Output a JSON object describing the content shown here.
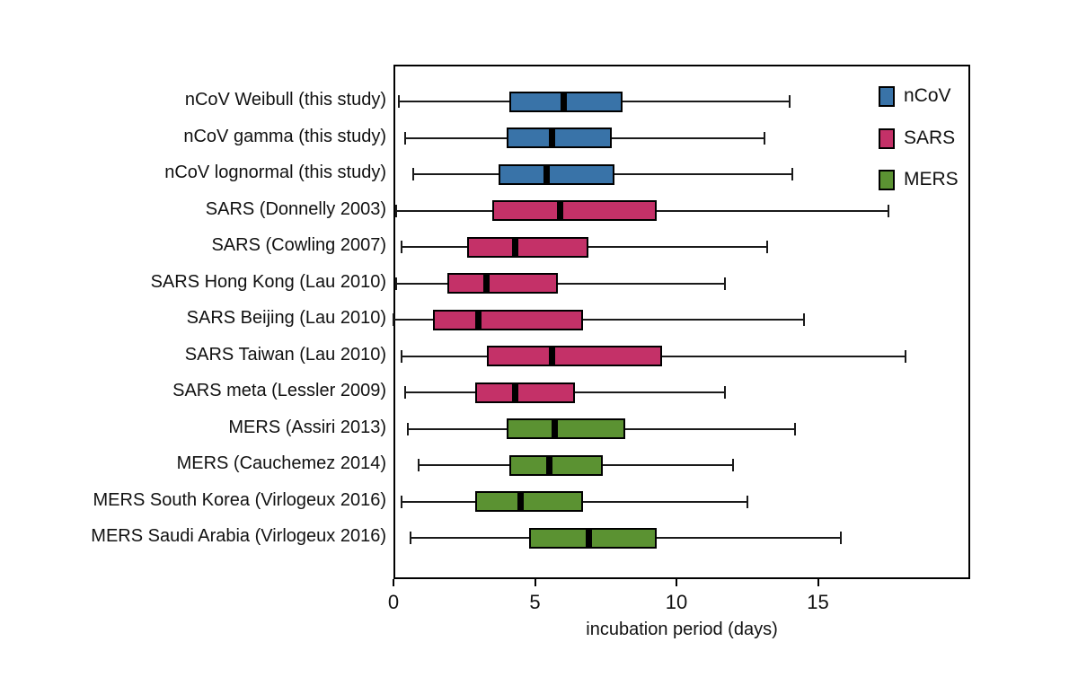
{
  "chart_data": {
    "type": "boxplot",
    "orientation": "horizontal",
    "title": "",
    "xlabel": "incubation period (days)",
    "x_tick_labels": [
      "0",
      "5",
      "10",
      "15"
    ],
    "x_tick_values": [
      0,
      5,
      10,
      15
    ],
    "xlim": [
      0,
      20.4
    ],
    "grid": false,
    "legend_position": "inside-top-right",
    "legend": [
      {
        "label": "nCoV",
        "color": "#3973A8"
      },
      {
        "label": "SARS",
        "color": "#C43168"
      },
      {
        "label": "MERS",
        "color": "#5B9232"
      }
    ],
    "series": [
      {
        "label": "nCoV Weibull (this study)",
        "group": "nCoV",
        "values": {
          "low": 0.2,
          "q1": 4.1,
          "median": 6.0,
          "q3": 8.1,
          "high": 14.0
        }
      },
      {
        "label": "nCoV gamma (this study)",
        "group": "nCoV",
        "values": {
          "low": 0.4,
          "q1": 4.0,
          "median": 5.6,
          "q3": 7.7,
          "high": 13.1
        }
      },
      {
        "label": "nCoV lognormal (this study)",
        "group": "nCoV",
        "values": {
          "low": 0.7,
          "q1": 3.7,
          "median": 5.4,
          "q3": 7.8,
          "high": 14.1
        }
      },
      {
        "label": "SARS (Donnelly 2003)",
        "group": "SARS",
        "values": {
          "low": 0.1,
          "q1": 3.5,
          "median": 5.9,
          "q3": 9.3,
          "high": 17.5
        }
      },
      {
        "label": "SARS (Cowling 2007)",
        "group": "SARS",
        "values": {
          "low": 0.3,
          "q1": 2.6,
          "median": 4.3,
          "q3": 6.9,
          "high": 13.2
        }
      },
      {
        "label": "SARS Hong Kong (Lau 2010)",
        "group": "SARS",
        "values": {
          "low": 0.1,
          "q1": 1.9,
          "median": 3.3,
          "q3": 5.8,
          "high": 11.7
        }
      },
      {
        "label": "SARS Beijing (Lau 2010)",
        "group": "SARS",
        "values": {
          "low": 0.0,
          "q1": 1.4,
          "median": 3.0,
          "q3": 6.7,
          "high": 14.5
        }
      },
      {
        "label": "SARS Taiwan (Lau 2010)",
        "group": "SARS",
        "values": {
          "low": 0.3,
          "q1": 3.3,
          "median": 5.6,
          "q3": 9.5,
          "high": 18.1
        }
      },
      {
        "label": "SARS meta (Lessler 2009)",
        "group": "SARS",
        "values": {
          "low": 0.4,
          "q1": 2.9,
          "median": 4.3,
          "q3": 6.4,
          "high": 11.7
        }
      },
      {
        "label": "MERS (Assiri 2013)",
        "group": "MERS",
        "values": {
          "low": 0.5,
          "q1": 4.0,
          "median": 5.7,
          "q3": 8.2,
          "high": 14.2
        }
      },
      {
        "label": "MERS (Cauchemez 2014)",
        "group": "MERS",
        "values": {
          "low": 0.9,
          "q1": 4.1,
          "median": 5.5,
          "q3": 7.4,
          "high": 12.0
        }
      },
      {
        "label": "MERS South Korea (Virlogeux 2016)",
        "group": "MERS",
        "values": {
          "low": 0.3,
          "q1": 2.9,
          "median": 4.5,
          "q3": 6.7,
          "high": 12.5
        }
      },
      {
        "label": "MERS Saudi Arabia (Virlogeux 2016)",
        "group": "MERS",
        "values": {
          "low": 0.6,
          "q1": 4.8,
          "median": 6.9,
          "q3": 9.3,
          "high": 15.8
        }
      }
    ]
  }
}
